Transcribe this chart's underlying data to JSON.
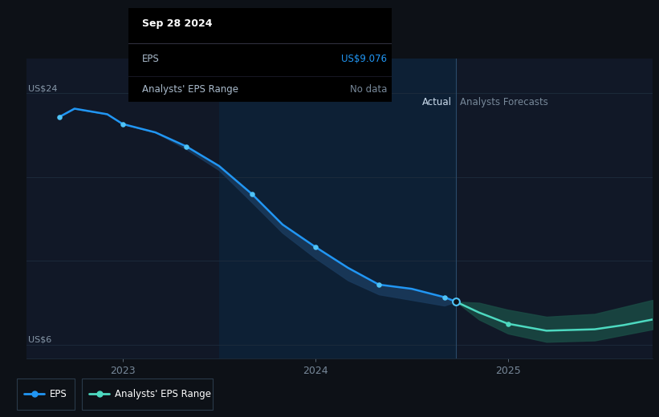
{
  "bg_color": "#0d1117",
  "plot_bg_color": "#111827",
  "chart_bg_darker": "#0d1520",
  "grid_color": "#1e2d3d",
  "highlight_bg": "#0d2035",
  "ylabel_us24": "US$24",
  "ylabel_us6": "US$6",
  "ymin": 5.0,
  "ymax": 26.5,
  "xmin": 2022.5,
  "xmax": 2025.75,
  "divider_x": 2024.73,
  "highlight_start": 2023.5,
  "highlight_end": 2024.73,
  "label_actual": "Actual",
  "label_forecast": "Analysts Forecasts",
  "tooltip_date": "Sep 28 2024",
  "tooltip_eps_label": "EPS",
  "tooltip_eps_value": "US$9.076",
  "tooltip_range_label": "Analysts' EPS Range",
  "tooltip_range_value": "No data",
  "eps_color": "#2196f3",
  "forecast_color": "#4dd9c0",
  "forecast_fill_color": "#1a4a44",
  "eps_fill_color": "#1a3a5c",
  "marker_color_actual": "#4fc3f7",
  "marker_color_forecast": "#4dd9c0",
  "actual_eps_x": [
    2022.67,
    2022.75,
    2022.92,
    2023.0,
    2023.17,
    2023.33,
    2023.5,
    2023.67,
    2023.83,
    2024.0,
    2024.17,
    2024.33,
    2024.5,
    2024.67,
    2024.73
  ],
  "actual_eps_y": [
    22.3,
    22.9,
    22.5,
    21.8,
    21.2,
    20.2,
    18.8,
    16.8,
    14.6,
    13.0,
    11.5,
    10.3,
    10.0,
    9.4,
    9.076
  ],
  "actual_range_upper": [
    22.3,
    22.9,
    22.5,
    21.8,
    21.2,
    20.2,
    18.8,
    16.8,
    14.6,
    13.0,
    11.5,
    10.3,
    10.0,
    9.4,
    9.076
  ],
  "actual_range_lower": [
    22.3,
    22.9,
    22.5,
    21.8,
    21.2,
    20.0,
    18.5,
    16.2,
    14.0,
    12.2,
    10.6,
    9.6,
    9.2,
    8.8,
    9.076
  ],
  "forecast_x": [
    2024.73,
    2024.85,
    2025.0,
    2025.2,
    2025.45,
    2025.6,
    2025.75
  ],
  "forecast_eps_y": [
    9.076,
    8.3,
    7.5,
    7.0,
    7.1,
    7.4,
    7.8
  ],
  "forecast_upper_y": [
    9.076,
    9.0,
    8.5,
    8.0,
    8.2,
    8.7,
    9.2
  ],
  "forecast_lower_y": [
    9.076,
    7.8,
    6.8,
    6.2,
    6.3,
    6.7,
    7.1
  ],
  "xticks": [
    2023.0,
    2024.0,
    2025.0
  ],
  "xtick_labels": [
    "2023",
    "2024",
    "2025"
  ],
  "legend_eps_color": "#2196f3",
  "legend_forecast_color": "#4dd9c0",
  "x_marker_actual": [
    2022.67,
    2023.0,
    2023.33,
    2023.67,
    2024.0,
    2024.33,
    2024.67,
    2024.73
  ],
  "y_marker_actual": [
    22.3,
    21.8,
    20.2,
    16.8,
    13.0,
    10.3,
    9.4,
    9.076
  ],
  "x_marker_forecast": [
    2025.0
  ],
  "y_marker_forecast": [
    7.5
  ]
}
